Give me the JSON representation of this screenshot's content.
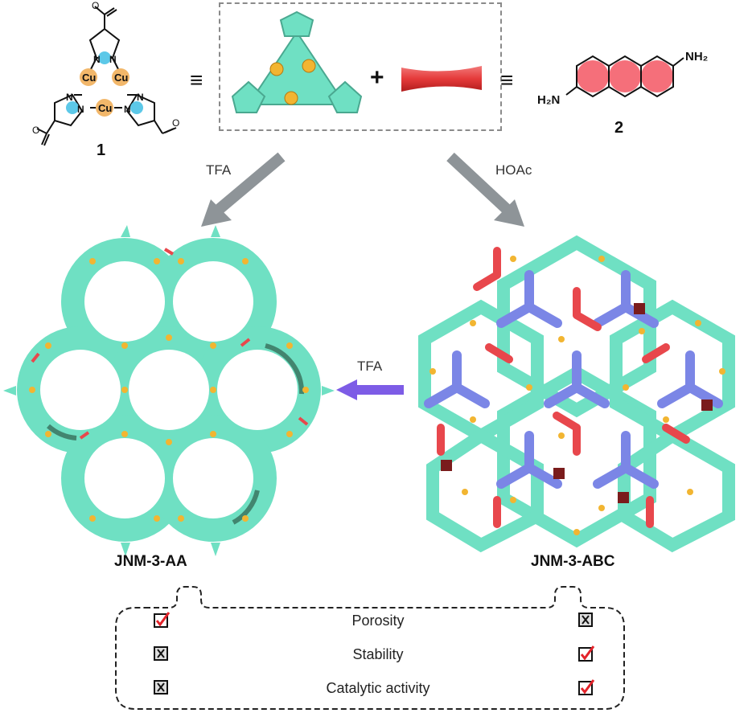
{
  "compound1": {
    "number": "1",
    "cu": "Cu",
    "n": "N"
  },
  "compound2": {
    "number": "2",
    "amine_top": "NH₂",
    "amine_left": "H₂N"
  },
  "symbols": {
    "equiv_left": "≡",
    "equiv_right": "≡",
    "plus": "+"
  },
  "arrows": {
    "left_label": "TFA",
    "right_label": "HOAc",
    "conversion_label": "TFA"
  },
  "structures": {
    "left_name": "JNM-3-AA",
    "right_name": "JNM-3-ABC"
  },
  "comparison": {
    "rows": [
      {
        "property": "Porosity",
        "aa": "check",
        "abc": "cross"
      },
      {
        "property": "Stability",
        "aa": "cross",
        "abc": "check"
      },
      {
        "property": "Catalytic activity",
        "aa": "cross",
        "abc": "check"
      }
    ]
  },
  "colors": {
    "teal": "#6fe0c3",
    "blue": "#7b86e6",
    "red": "#e8474c",
    "dark_red": "#7a1c1c",
    "gold": "#f2b531",
    "pink": "#f4717c",
    "arrow_grey": "#8e9498",
    "arrow_purple": "#7d5ce6",
    "check_red": "#e3232a"
  }
}
